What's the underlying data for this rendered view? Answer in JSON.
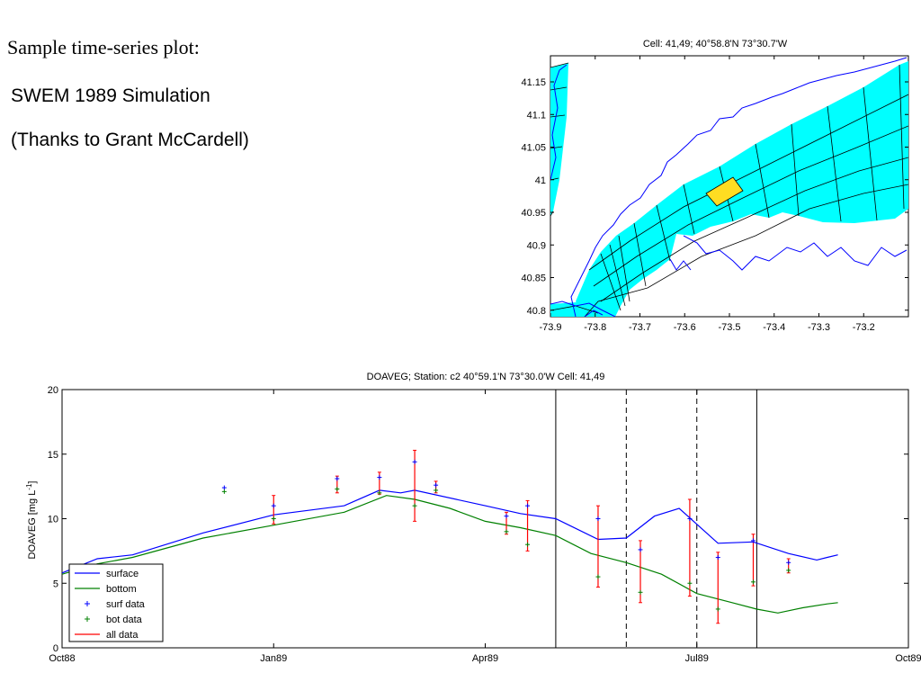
{
  "slide": {
    "heading": "Sample time-series plot:",
    "line1": "SWEM 1989 Simulation",
    "line2": "(Thanks to Grant McCardell)"
  },
  "colors": {
    "water": "#00ffff",
    "coastline": "#0000ff",
    "highlight": "#ffdd22",
    "surface": "#0000ff",
    "bottom": "#008000",
    "data": "#ff0000"
  },
  "chart_data": [
    {
      "type": "map",
      "title": "Cell: 41,49; 40°58.8'N 73°30.7'W",
      "x_ticks": [
        "-73.9",
        "-73.8",
        "-73.7",
        "-73.6",
        "-73.5",
        "-73.4",
        "-73.3",
        "-73.2"
      ],
      "y_ticks": [
        "41.15",
        "41.1",
        "41.05",
        "41",
        "40.95",
        "40.9",
        "40.85",
        "40.8"
      ],
      "xlim": [
        -73.9,
        -73.1
      ],
      "ylim": [
        40.79,
        41.19
      ],
      "highlighted_cell": "41,49"
    },
    {
      "type": "line",
      "title": "DOAVEG; Station: c2 40°59.1'N 73°30.0'W  Cell: 41,49",
      "ylabel_main": "DOAVEG [mg L",
      "ylabel_sup": "-1",
      "ylabel_end": "]",
      "x_ticks": [
        "Oct88",
        "Jan89",
        "Apr89",
        "Jul89",
        "Oct89"
      ],
      "y_ticks": [
        "0",
        "5",
        "10",
        "15",
        "20"
      ],
      "ylim": [
        0,
        20
      ],
      "vertical_lines": [
        {
          "month": 8.0,
          "style": "solid"
        },
        {
          "month": 9.0,
          "style": "dashed"
        },
        {
          "month": 10.0,
          "style": "dashed"
        },
        {
          "month": 10.85,
          "style": "solid"
        }
      ],
      "series": [
        {
          "name": "surface",
          "x": [
            1.0,
            1.5,
            2.0,
            3.0,
            4.0,
            5.0,
            5.5,
            5.8,
            6.0,
            7.0,
            7.5,
            8.0,
            8.6,
            9.0,
            9.4,
            9.75,
            10.3,
            10.8,
            11.3,
            11.7,
            11.85,
            12.0
          ],
          "y": [
            5.8,
            6.9,
            7.2,
            8.9,
            10.3,
            11.0,
            12.2,
            12.0,
            12.2,
            11.0,
            10.4,
            10.0,
            8.4,
            8.5,
            10.2,
            10.8,
            8.1,
            8.2,
            7.3,
            6.8,
            7.0,
            7.2
          ]
        },
        {
          "name": "bottom",
          "x": [
            1.0,
            1.5,
            2.0,
            3.0,
            4.0,
            5.0,
            5.6,
            6.0,
            6.5,
            7.0,
            7.5,
            8.0,
            8.5,
            9.0,
            9.5,
            10.0,
            10.5,
            10.85,
            11.15,
            11.5,
            11.85,
            12.0
          ],
          "y": [
            5.7,
            6.5,
            7.0,
            8.5,
            9.5,
            10.5,
            11.8,
            11.5,
            10.8,
            9.8,
            9.3,
            8.7,
            7.3,
            6.6,
            5.7,
            4.2,
            3.5,
            3.0,
            2.7,
            3.1,
            3.4,
            3.5
          ]
        }
      ],
      "surf_data": [
        {
          "x": 3.3,
          "y": 12.4
        },
        {
          "x": 4.0,
          "y": 11.0
        },
        {
          "x": 4.9,
          "y": 13.1
        },
        {
          "x": 5.5,
          "y": 13.2
        },
        {
          "x": 6.0,
          "y": 14.4
        },
        {
          "x": 6.3,
          "y": 12.6
        },
        {
          "x": 7.3,
          "y": 10.2
        },
        {
          "x": 7.6,
          "y": 11.0
        },
        {
          "x": 8.6,
          "y": 10.0
        },
        {
          "x": 9.2,
          "y": 7.6
        },
        {
          "x": 9.9,
          "y": 10.0
        },
        {
          "x": 10.3,
          "y": 7.0
        },
        {
          "x": 10.8,
          "y": 8.3
        },
        {
          "x": 11.3,
          "y": 6.6
        }
      ],
      "bot_data": [
        {
          "x": 3.3,
          "y": 12.1
        },
        {
          "x": 4.0,
          "y": 10.0
        },
        {
          "x": 4.9,
          "y": 12.3
        },
        {
          "x": 5.5,
          "y": 12.0
        },
        {
          "x": 6.0,
          "y": 11.0
        },
        {
          "x": 6.3,
          "y": 12.2
        },
        {
          "x": 7.3,
          "y": 9.0
        },
        {
          "x": 7.6,
          "y": 8.0
        },
        {
          "x": 8.6,
          "y": 5.5
        },
        {
          "x": 9.2,
          "y": 4.3
        },
        {
          "x": 9.9,
          "y": 5.0
        },
        {
          "x": 10.3,
          "y": 3.0
        },
        {
          "x": 10.8,
          "y": 5.1
        },
        {
          "x": 11.3,
          "y": 6.0
        }
      ],
      "all_data": [
        {
          "x": 4.0,
          "lo": 9.6,
          "hi": 11.8
        },
        {
          "x": 4.9,
          "lo": 12.0,
          "hi": 13.3
        },
        {
          "x": 5.5,
          "lo": 11.9,
          "hi": 13.6
        },
        {
          "x": 6.0,
          "lo": 9.8,
          "hi": 15.3
        },
        {
          "x": 6.3,
          "lo": 12.0,
          "hi": 12.9
        },
        {
          "x": 7.3,
          "lo": 8.8,
          "hi": 10.5
        },
        {
          "x": 7.6,
          "lo": 7.5,
          "hi": 11.4
        },
        {
          "x": 8.6,
          "lo": 4.7,
          "hi": 11.0
        },
        {
          "x": 9.2,
          "lo": 3.5,
          "hi": 8.3
        },
        {
          "x": 9.9,
          "lo": 4.0,
          "hi": 11.5
        },
        {
          "x": 10.3,
          "lo": 1.9,
          "hi": 7.4
        },
        {
          "x": 10.8,
          "lo": 4.8,
          "hi": 8.8
        },
        {
          "x": 11.3,
          "lo": 5.8,
          "hi": 6.9
        }
      ],
      "legend": {
        "placement": "bottom-left",
        "items": [
          "surface",
          "bottom",
          "surf data",
          "bot data",
          "all data"
        ]
      }
    }
  ]
}
